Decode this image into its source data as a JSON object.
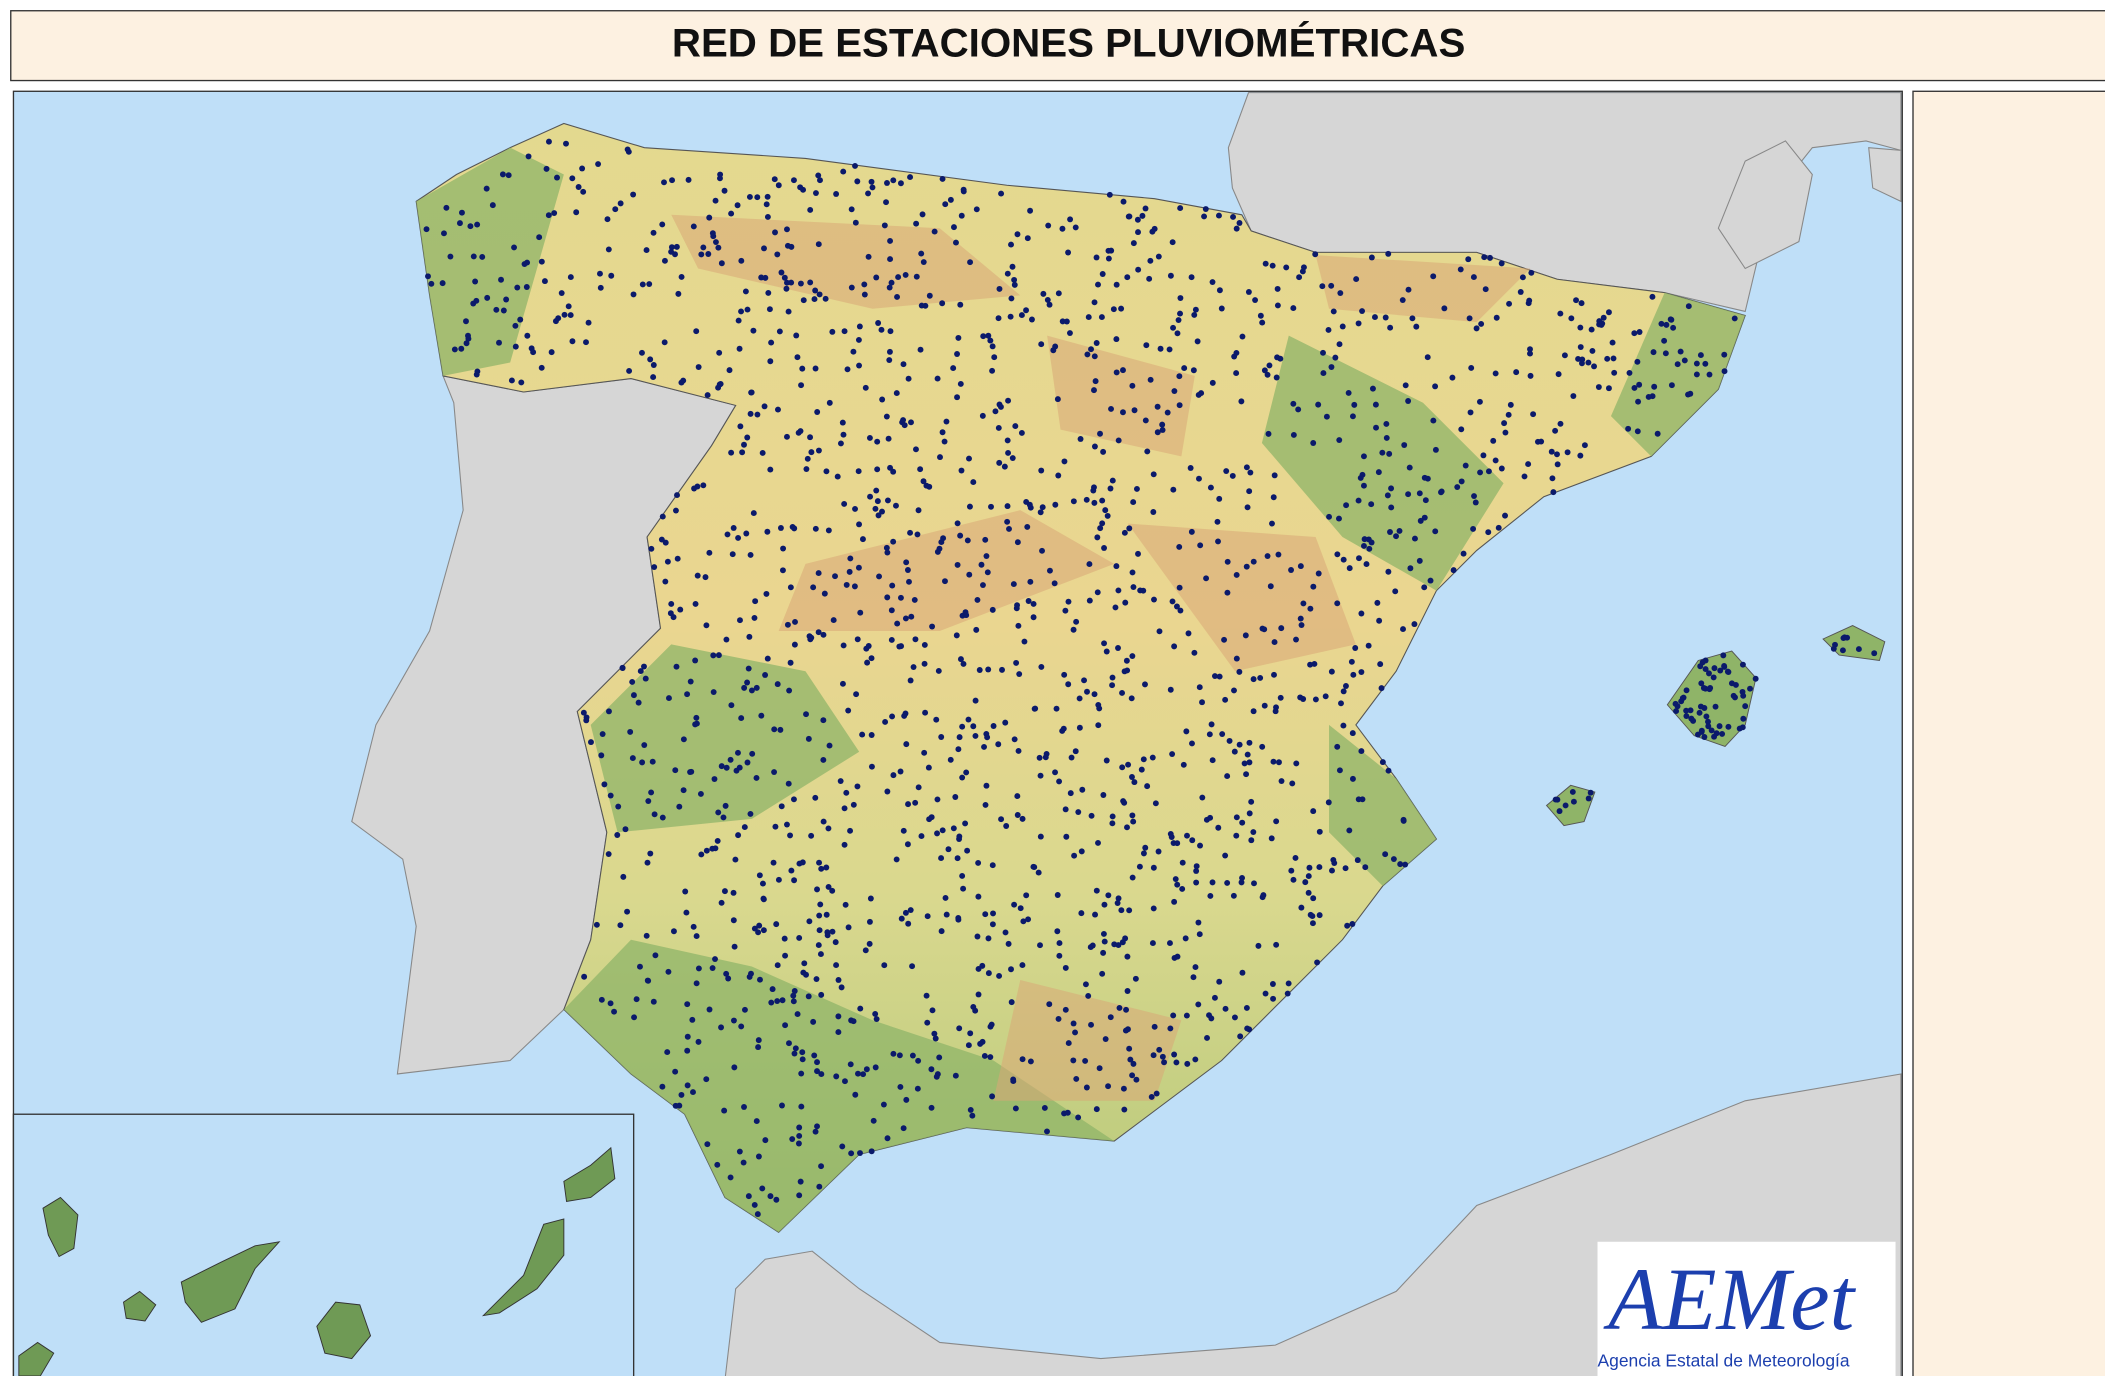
{
  "header": {
    "title": "RED DE ESTACIONES PLUVIOMÉTRICAS"
  },
  "logo": {
    "brand": "AEMet",
    "agency": "Agencia Estatal de Meteorología"
  }
}
